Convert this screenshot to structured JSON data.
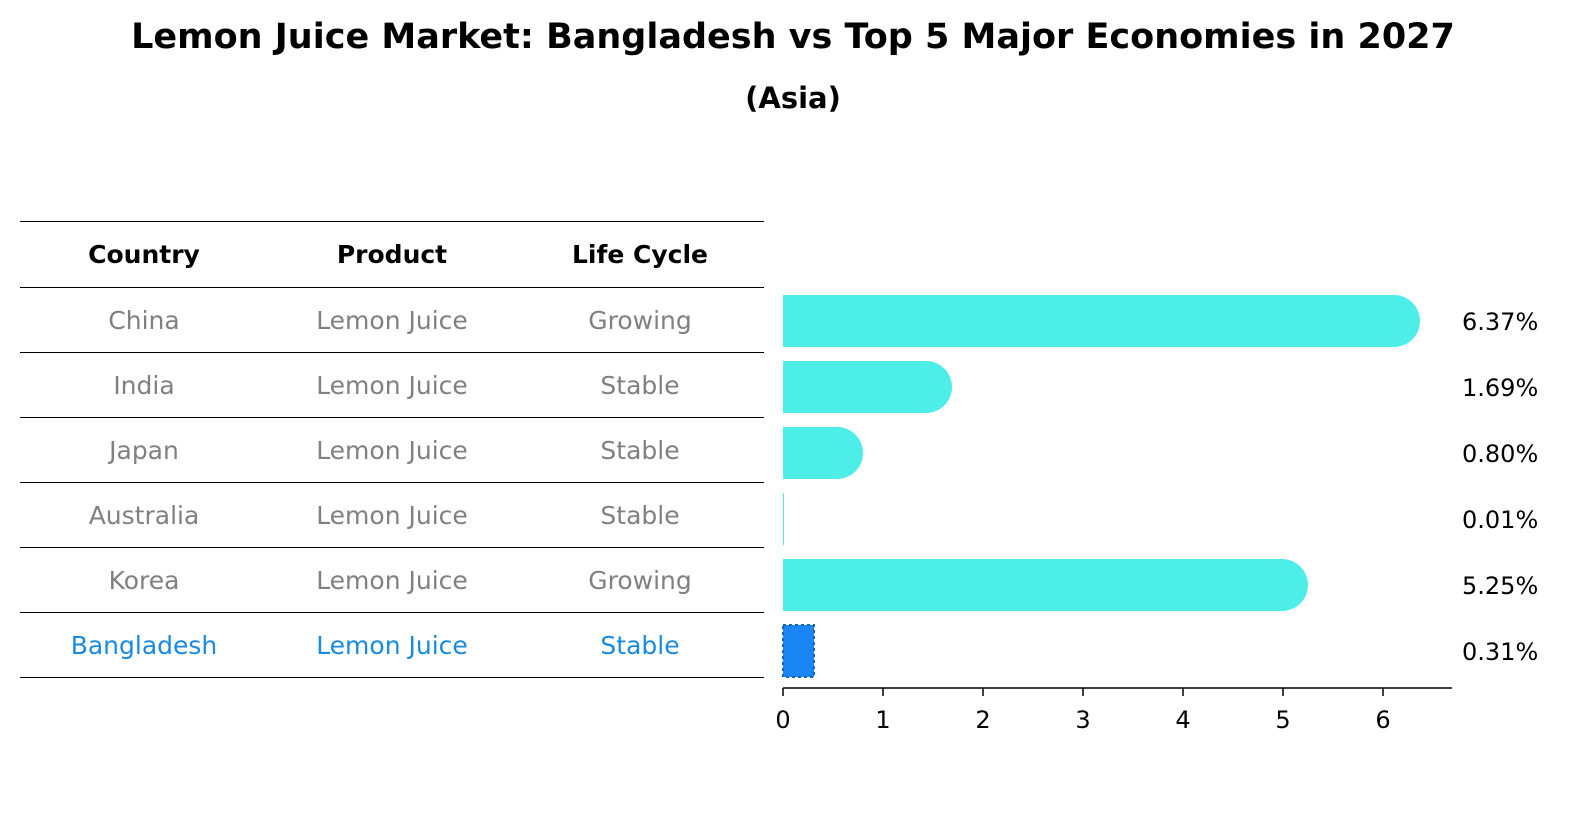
{
  "title": "Lemon Juice Market: Bangladesh vs Top 5 Major Economies in 2027",
  "subtitle": "(Asia)",
  "table": {
    "headers": [
      "Country",
      "Product",
      "Life Cycle"
    ],
    "rows": [
      {
        "country": "China",
        "product": "Lemon Juice",
        "life_cycle": "Growing"
      },
      {
        "country": "India",
        "product": "Lemon Juice",
        "life_cycle": "Stable"
      },
      {
        "country": "Japan",
        "product": "Lemon Juice",
        "life_cycle": "Stable"
      },
      {
        "country": "Australia",
        "product": "Lemon Juice",
        "life_cycle": "Stable"
      },
      {
        "country": "Korea",
        "product": "Lemon Juice",
        "life_cycle": "Growing"
      },
      {
        "country": "Bangladesh",
        "product": "Lemon Juice",
        "life_cycle": "Stable"
      }
    ]
  },
  "chart_data": {
    "type": "bar",
    "orientation": "horizontal",
    "categories": [
      "China",
      "India",
      "Japan",
      "Australia",
      "Korea",
      "Bangladesh"
    ],
    "values": [
      6.37,
      1.69,
      0.8,
      0.01,
      5.25,
      0.31
    ],
    "value_labels": [
      "6.37%",
      "1.69%",
      "0.80%",
      "0.01%",
      "5.25%",
      "0.31%"
    ],
    "xlim": [
      0,
      6.69
    ],
    "xticks": [
      0,
      1,
      2,
      3,
      4,
      5,
      6
    ],
    "highlight": "Bangladesh",
    "colors": {
      "default": "#4deee8",
      "highlight": "#1a85f5",
      "highlight_text": "#1a8ae0",
      "muted_text": "#808080"
    }
  }
}
